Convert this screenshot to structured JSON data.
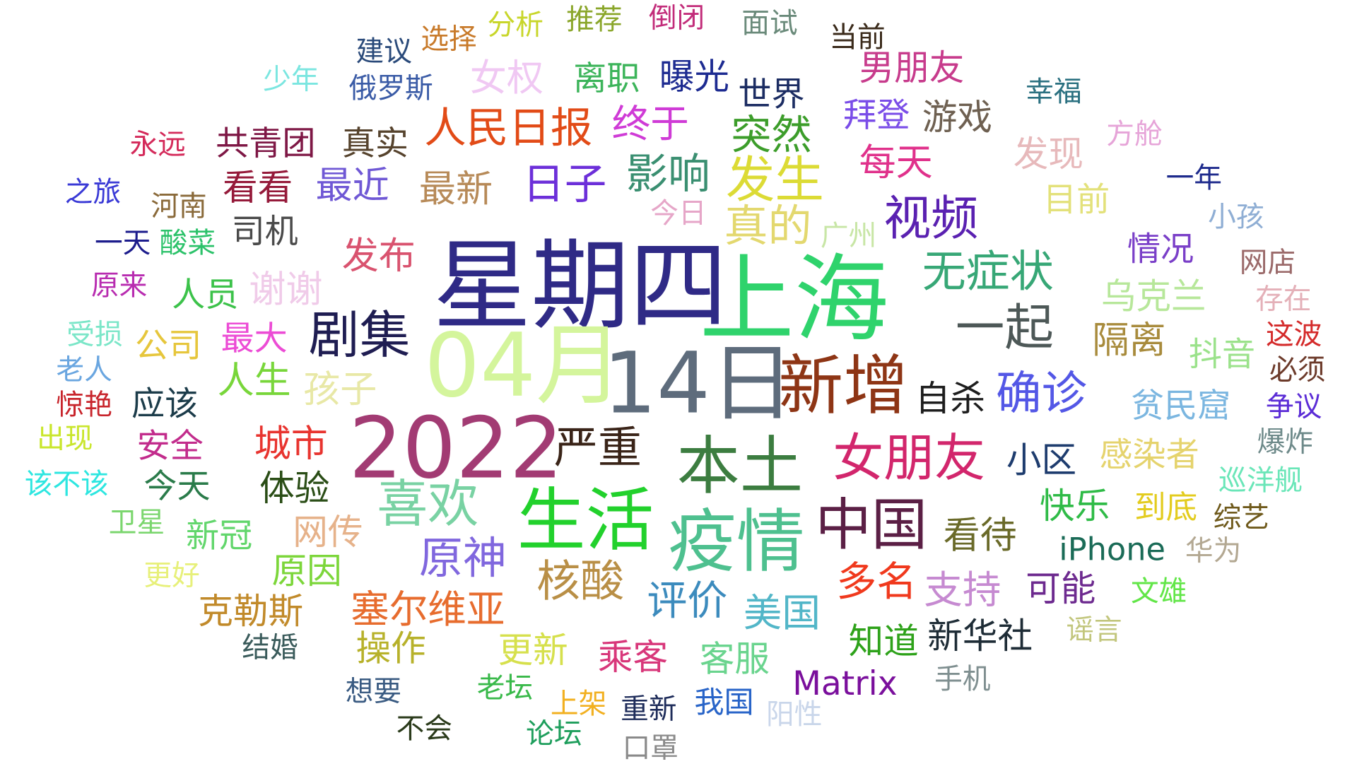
{
  "words": [
    {
      "text": "星期四",
      "color": "#2f2a86"
    },
    {
      "text": "上海",
      "color": "#2fd36c"
    },
    {
      "text": "04月",
      "color": "#d4f59c"
    },
    {
      "text": "14日",
      "color": "#5e6c7c"
    },
    {
      "text": "2022",
      "color": "#a23b73"
    },
    {
      "text": "生活",
      "color": "#22d12c"
    },
    {
      "text": "疫情",
      "color": "#4ec08f"
    },
    {
      "text": "本土",
      "color": "#3c7d40"
    },
    {
      "text": "新增",
      "color": "#8e3515"
    },
    {
      "text": "中国",
      "color": "#5b1f45"
    },
    {
      "text": "女朋友",
      "color": "#d2266c"
    },
    {
      "text": "确诊",
      "color": "#5357e6"
    },
    {
      "text": "喜欢",
      "color": "#79d2a3"
    },
    {
      "text": "剧集",
      "color": "#1f1d52"
    },
    {
      "text": "一起",
      "color": "#4d5857"
    },
    {
      "text": "严重",
      "color": "#3a2418"
    },
    {
      "text": "原神",
      "color": "#8067de"
    },
    {
      "text": "核酸",
      "color": "#b98f46"
    },
    {
      "text": "视频",
      "color": "#5a21b1"
    },
    {
      "text": "无症状",
      "color": "#37a776"
    },
    {
      "text": "发生",
      "color": "#dcdb35"
    },
    {
      "text": "真的",
      "color": "#e3d86f"
    },
    {
      "text": "人民日报",
      "color": "#e24b17"
    },
    {
      "text": "日子",
      "color": "#6c2fd9"
    },
    {
      "text": "影响",
      "color": "#3a8f71"
    },
    {
      "text": "突然",
      "color": "#3c9d2a"
    },
    {
      "text": "评价",
      "color": "#3c8bbd"
    },
    {
      "text": "塞尔维亚",
      "color": "#e76c2e"
    },
    {
      "text": "多名",
      "color": "#f0391d"
    },
    {
      "text": "支持",
      "color": "#c68ad1"
    },
    {
      "text": "看待",
      "color": "#6a6a29"
    },
    {
      "text": "快乐",
      "color": "#2fbb47"
    },
    {
      "text": "到底",
      "color": "#e3cc1f"
    },
    {
      "text": "iPhone",
      "color": "#1a6b57"
    },
    {
      "text": "小区",
      "color": "#1e3c6e"
    },
    {
      "text": "感染者",
      "color": "#e5d36d"
    },
    {
      "text": "自杀",
      "color": "#1d1d1d"
    },
    {
      "text": "城市",
      "color": "#e8342f"
    },
    {
      "text": "体验",
      "color": "#2a4d16"
    },
    {
      "text": "孩子",
      "color": "#e8e8a6"
    },
    {
      "text": "人生",
      "color": "#78d63a"
    },
    {
      "text": "最大",
      "color": "#ec4cd5"
    },
    {
      "text": "发布",
      "color": "#d9536f"
    },
    {
      "text": "谢谢",
      "color": "#f0cbe9"
    },
    {
      "text": "最近",
      "color": "#6f58d5"
    },
    {
      "text": "最新",
      "color": "#b78a58"
    },
    {
      "text": "看看",
      "color": "#951a3a"
    },
    {
      "text": "司机",
      "color": "#4a4a4a"
    },
    {
      "text": "共青团",
      "color": "#7e1745"
    },
    {
      "text": "真实",
      "color": "#56432d"
    },
    {
      "text": "终于",
      "color": "#cf3bd6"
    },
    {
      "text": "女权",
      "color": "#f0c8f3"
    },
    {
      "text": "离职",
      "color": "#3cb45a"
    },
    {
      "text": "曝光",
      "color": "#1d2b91"
    },
    {
      "text": "世界",
      "color": "#1b2c62"
    },
    {
      "text": "男朋友",
      "color": "#c73b8c"
    },
    {
      "text": "拜登",
      "color": "#7a4de8"
    },
    {
      "text": "游戏",
      "color": "#6e6051"
    },
    {
      "text": "每天",
      "color": "#e0318b"
    },
    {
      "text": "发现",
      "color": "#e7b9bb"
    },
    {
      "text": "目前",
      "color": "#e3e17a"
    },
    {
      "text": "幸福",
      "color": "#2a7080"
    },
    {
      "text": "方舱",
      "color": "#e6a4d8"
    },
    {
      "text": "一年",
      "color": "#1d2a8c"
    },
    {
      "text": "小孩",
      "color": "#8faed4"
    },
    {
      "text": "情况",
      "color": "#7a3fc8"
    },
    {
      "text": "网店",
      "color": "#9b6a6a"
    },
    {
      "text": "存在",
      "color": "#e4b0b8"
    },
    {
      "text": "乌克兰",
      "color": "#b7e79a"
    },
    {
      "text": "隔离",
      "color": "#a88b3c"
    },
    {
      "text": "抖音",
      "color": "#9be28b"
    },
    {
      "text": "这波",
      "color": "#d42a2a"
    },
    {
      "text": "必须",
      "color": "#6c3a2a"
    },
    {
      "text": "贫民窟",
      "color": "#7bb6e0"
    },
    {
      "text": "争议",
      "color": "#5b2cd6"
    },
    {
      "text": "爆炸",
      "color": "#6e8a8a"
    },
    {
      "text": "巡洋舰",
      "color": "#6ae6b8"
    },
    {
      "text": "综艺",
      "color": "#6f5a1c"
    },
    {
      "text": "华为",
      "color": "#b3a892"
    },
    {
      "text": "文雄",
      "color": "#62e648"
    },
    {
      "text": "谣言",
      "color": "#c2c67d"
    },
    {
      "text": "手机",
      "color": "#7f8f90"
    },
    {
      "text": "Matrix",
      "color": "#7a0f9c"
    },
    {
      "text": "知道",
      "color": "#2ea21a"
    },
    {
      "text": "新华社",
      "color": "#1e2c36"
    },
    {
      "text": "可能",
      "color": "#6d2a8f"
    },
    {
      "text": "美国",
      "color": "#52b6c8"
    },
    {
      "text": "客服",
      "color": "#6ad48e"
    },
    {
      "text": "乘客",
      "color": "#d8377a"
    },
    {
      "text": "更新",
      "color": "#d6e04c"
    },
    {
      "text": "操作",
      "color": "#b7b12a"
    },
    {
      "text": "阳性",
      "color": "#c9d6ea"
    },
    {
      "text": "我国",
      "color": "#2864c8"
    },
    {
      "text": "重新",
      "color": "#1e2c5a"
    },
    {
      "text": "上架",
      "color": "#f2b020"
    },
    {
      "text": "口罩",
      "color": "#8a8a8a"
    },
    {
      "text": "论坛",
      "color": "#1e9e5c"
    },
    {
      "text": "老坛",
      "color": "#39b94a"
    },
    {
      "text": "不会",
      "color": "#2a3a1a"
    },
    {
      "text": "想要",
      "color": "#3a5b82"
    },
    {
      "text": "结婚",
      "color": "#3a5b5b"
    },
    {
      "text": "克勒斯",
      "color": "#c18a2a"
    },
    {
      "text": "原因",
      "color": "#7cd63a"
    },
    {
      "text": "网传",
      "color": "#e6b28a"
    },
    {
      "text": "新冠",
      "color": "#62d66c"
    },
    {
      "text": "更好",
      "color": "#e7f07a"
    },
    {
      "text": "卫星",
      "color": "#7bd66e"
    },
    {
      "text": "今天",
      "color": "#2a7b4a"
    },
    {
      "text": "安全",
      "color": "#c22c8c"
    },
    {
      "text": "应该",
      "color": "#1c3c4a"
    },
    {
      "text": "公司",
      "color": "#e6c63c"
    },
    {
      "text": "人员",
      "color": "#3cc24a"
    },
    {
      "text": "该不该",
      "color": "#2de6e0"
    },
    {
      "text": "出现",
      "color": "#c9e62c"
    },
    {
      "text": "惊艳",
      "color": "#c8252c"
    },
    {
      "text": "老人",
      "color": "#6aa6e0"
    },
    {
      "text": "受损",
      "color": "#7be6c8"
    },
    {
      "text": "原来",
      "color": "#b82cb0"
    },
    {
      "text": "一天",
      "color": "#1c1c8c"
    },
    {
      "text": "酸菜",
      "color": "#2cc26a"
    },
    {
      "text": "之旅",
      "color": "#3a3ad6"
    },
    {
      "text": "河南",
      "color": "#8a6a3a"
    },
    {
      "text": "今日",
      "color": "#e6a6c8"
    },
    {
      "text": "广州",
      "color": "#c8e6a6"
    },
    {
      "text": "永远",
      "color": "#d42a5a"
    },
    {
      "text": "少年",
      "color": "#7be6e0"
    },
    {
      "text": "俄罗斯",
      "color": "#3a5ba6"
    },
    {
      "text": "建议",
      "color": "#2a4a7a"
    },
    {
      "text": "选择",
      "color": "#c87a2a"
    },
    {
      "text": "分析",
      "color": "#c8d62a"
    },
    {
      "text": "推荐",
      "color": "#8aa62a"
    },
    {
      "text": "倒闭",
      "color": "#c22c7a"
    },
    {
      "text": "面试",
      "color": "#6a8a7a"
    },
    {
      "text": "当前",
      "color": "#3a2a1a"
    }
  ]
}
